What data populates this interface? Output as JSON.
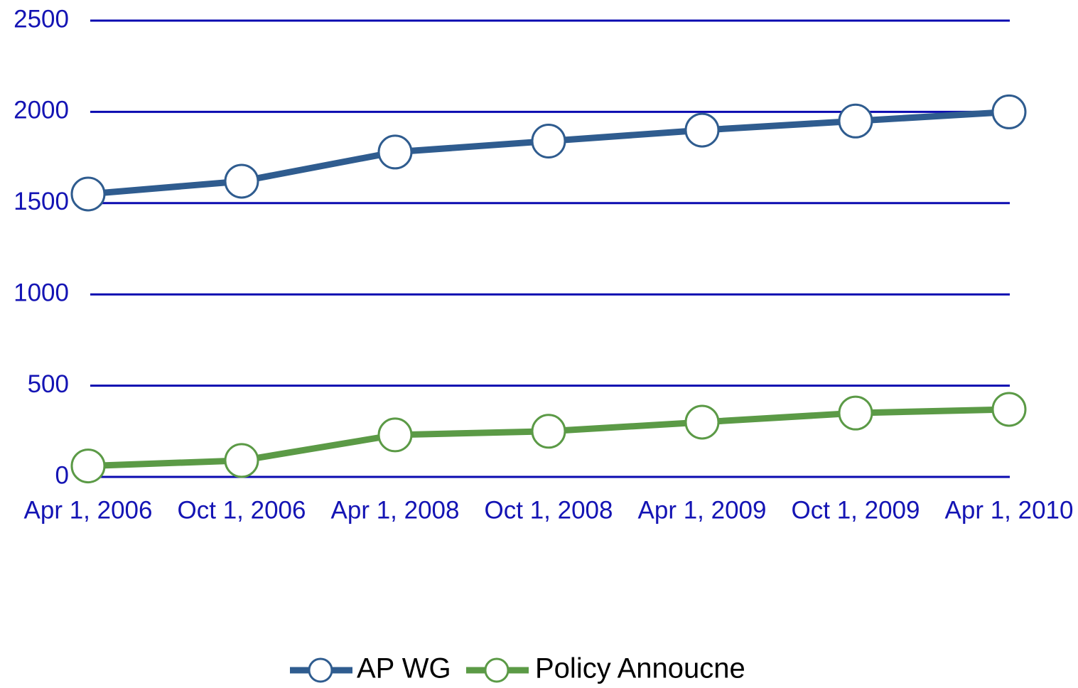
{
  "chart_data": {
    "type": "line",
    "categories": [
      "Apr 1, 2006",
      "Oct 1, 2006",
      "Apr 1, 2008",
      "Oct 1, 2008",
      "Apr 1, 2009",
      "Oct 1, 2009",
      "Apr 1, 2010"
    ],
    "series": [
      {
        "name": "AP WG",
        "color": "#2f5c8f",
        "values": [
          1550,
          1620,
          1780,
          1840,
          1900,
          1950,
          2000
        ]
      },
      {
        "name": "Policy Annoucne",
        "color": "#5b9a46",
        "values": [
          60,
          90,
          230,
          250,
          300,
          350,
          370
        ]
      }
    ],
    "ylim": [
      0,
      2500
    ],
    "yticks": [
      0,
      500,
      1000,
      1500,
      2000,
      2500
    ],
    "grid": true,
    "legend": "bottom"
  }
}
